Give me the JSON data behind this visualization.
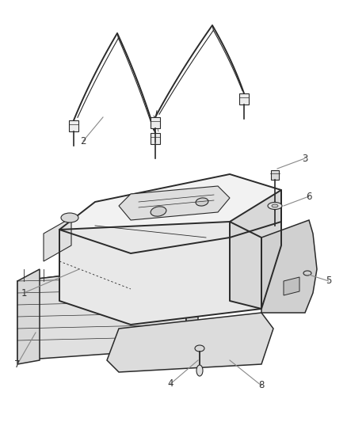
{
  "background_color": "#ffffff",
  "line_color": "#2a2a2a",
  "label_color": "#333333",
  "fig_width": 4.38,
  "fig_height": 5.33,
  "dpi": 100,
  "label_fontsize": 8.5
}
